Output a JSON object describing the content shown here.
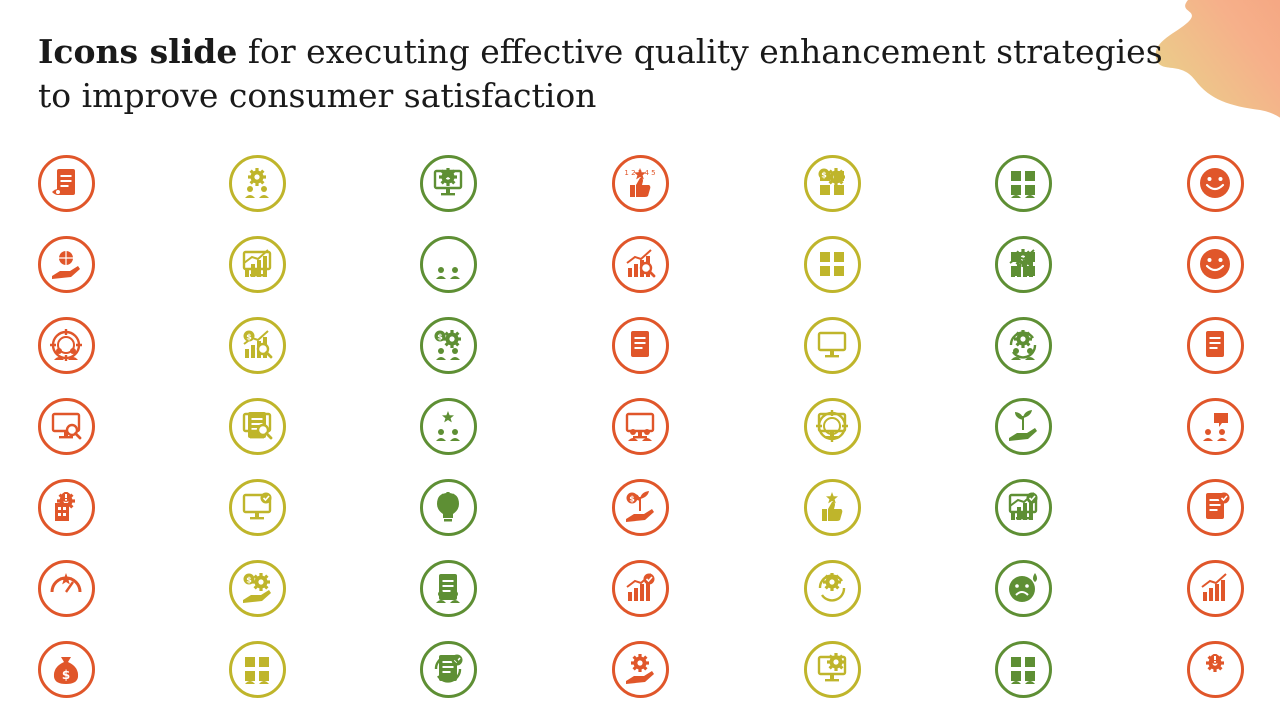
{
  "slide": {
    "title_bold": "Icons slide",
    "title_rest": " for executing effective quality enhancement strategies to improve consumer satisfaction"
  },
  "colors": {
    "orange": "#E0562A",
    "yellow": "#BFB52B",
    "green": "#5E8F34",
    "blob_orange": "#F6B08A",
    "blob_yellow": "#E4DE8A"
  },
  "columns": [
    {
      "color": "orange",
      "icons": [
        "document-eye-icon",
        "hands-globe-icon",
        "target-team-icon",
        "monitor-search-icon",
        "building-gear-alert-icon",
        "speedometer-rating-icon",
        "money-bag-icon"
      ]
    },
    {
      "color": "yellow",
      "icons": [
        "team-presentation-gear-icon",
        "growth-chart-board-icon",
        "chart-dollar-magnifier-icon",
        "clipboard-magnifier-icon",
        "monitor-check-icon",
        "hand-gear-dollar-icon",
        "people-grid-icon"
      ]
    },
    {
      "color": "green",
      "icons": [
        "board-rating-gear-icon",
        "presenter-audience-icon",
        "dollar-gear-people-icon",
        "team-star-icon",
        "lightbulb-gear-icon",
        "documents-person-icon",
        "checklist-cycle-icon"
      ]
    },
    {
      "color": "orange",
      "icons": [
        "number-rating-thumb-icon",
        "chart-magnifier-icon",
        "document-list-icon",
        "presenter-board-icon",
        "plant-dollar-hand-icon",
        "growth-arrow-check-icon",
        "hand-gears-icon"
      ]
    },
    {
      "color": "yellow",
      "icons": [
        "gear-dollar-boxes-icon",
        "tools-box-icon",
        "strategy-board-icon",
        "browser-gauge-target-icon",
        "thumb-stars-icon",
        "cycle-gears-icon",
        "gear-laptop-icon"
      ]
    },
    {
      "color": "green",
      "icons": [
        "person-box-icon",
        "gear-flowchart-icon",
        "cycle-people-gear-icon",
        "trees-hand-icon",
        "monitor-chart-check-icon",
        "sad-face-drop-icon",
        "team-connection-icon"
      ]
    },
    {
      "color": "orange",
      "icons": [
        "smile-face-icon",
        "smile-face-icon",
        "certificate-documents-icon",
        "people-chat-icon",
        "form-check-icon",
        "report-chart-icon",
        "gears-alert-icon"
      ]
    }
  ]
}
